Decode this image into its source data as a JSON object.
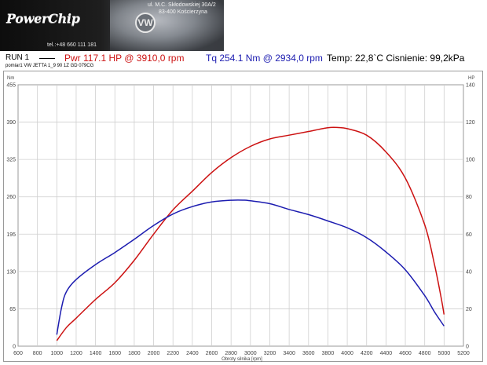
{
  "banner": {
    "brand": "PowerChip",
    "phone": "tel.:+48 660 111 181",
    "address_line1": "ul. M.C. Skłodowskiej 30A/2",
    "address_line2": "83-400 Kościerzyna"
  },
  "header": {
    "run_label": "RUN 1",
    "power_text": "Pwr  117.1 HP @ 3910,0 rpm",
    "torque_text": "Tq 254.1 Nm @ 2934,0 rpm",
    "conditions_text": "Temp: 22,8`C Cisnienie: 99,2kPa",
    "measurement_text": "pomiar1 VW JETTA 1_9 90 1Z GD 079CG"
  },
  "colors": {
    "power": "#cc1111",
    "torque": "#1c1cb0",
    "grid": "#cfcfcf"
  },
  "chart_data": {
    "type": "line",
    "xlabel": "Obroty silnika [rpm]",
    "ylabel_left": "Nm",
    "ylabel_right": "HP",
    "xlim": [
      600,
      5200
    ],
    "ylim_left": [
      0,
      455
    ],
    "ylim_right": [
      0,
      140
    ],
    "x_ticks": [
      600,
      800,
      1000,
      1200,
      1400,
      1600,
      1800,
      2000,
      2200,
      2400,
      2600,
      2800,
      3000,
      3200,
      3400,
      3600,
      3800,
      4000,
      4200,
      4400,
      4600,
      4800,
      5000,
      5200
    ],
    "y_ticks_left": [
      0,
      65,
      130,
      195,
      260,
      325,
      390,
      455
    ],
    "y_ticks_right": [
      0,
      20,
      40,
      60,
      80,
      100,
      120,
      140
    ],
    "grid": true,
    "series": [
      {
        "name": "Pwr",
        "axis": "right",
        "x": [
          1000,
          1100,
          1200,
          1400,
          1600,
          1800,
          2000,
          2200,
          2400,
          2600,
          2800,
          3000,
          3200,
          3400,
          3600,
          3800,
          3910,
          4000,
          4200,
          4400,
          4600,
          4800,
          4900,
          4970,
          5000
        ],
        "y": [
          3,
          10,
          15,
          25,
          34,
          46,
          60,
          73,
          83,
          93,
          101,
          107,
          111,
          113,
          115,
          117,
          117.1,
          116.5,
          113,
          104,
          90,
          65,
          44,
          26,
          17
        ]
      },
      {
        "name": "Tq",
        "axis": "left",
        "x": [
          1000,
          1050,
          1100,
          1200,
          1400,
          1600,
          1800,
          2000,
          2200,
          2400,
          2600,
          2800,
          2934,
          3000,
          3200,
          3400,
          3600,
          3800,
          4000,
          4200,
          4400,
          4600,
          4800,
          4900,
          5000
        ],
        "y": [
          20,
          68,
          95,
          116,
          142,
          163,
          186,
          210,
          230,
          243,
          251,
          254,
          254.1,
          253,
          248,
          238,
          229,
          218,
          206,
          189,
          164,
          133,
          88,
          60,
          35
        ]
      }
    ]
  }
}
